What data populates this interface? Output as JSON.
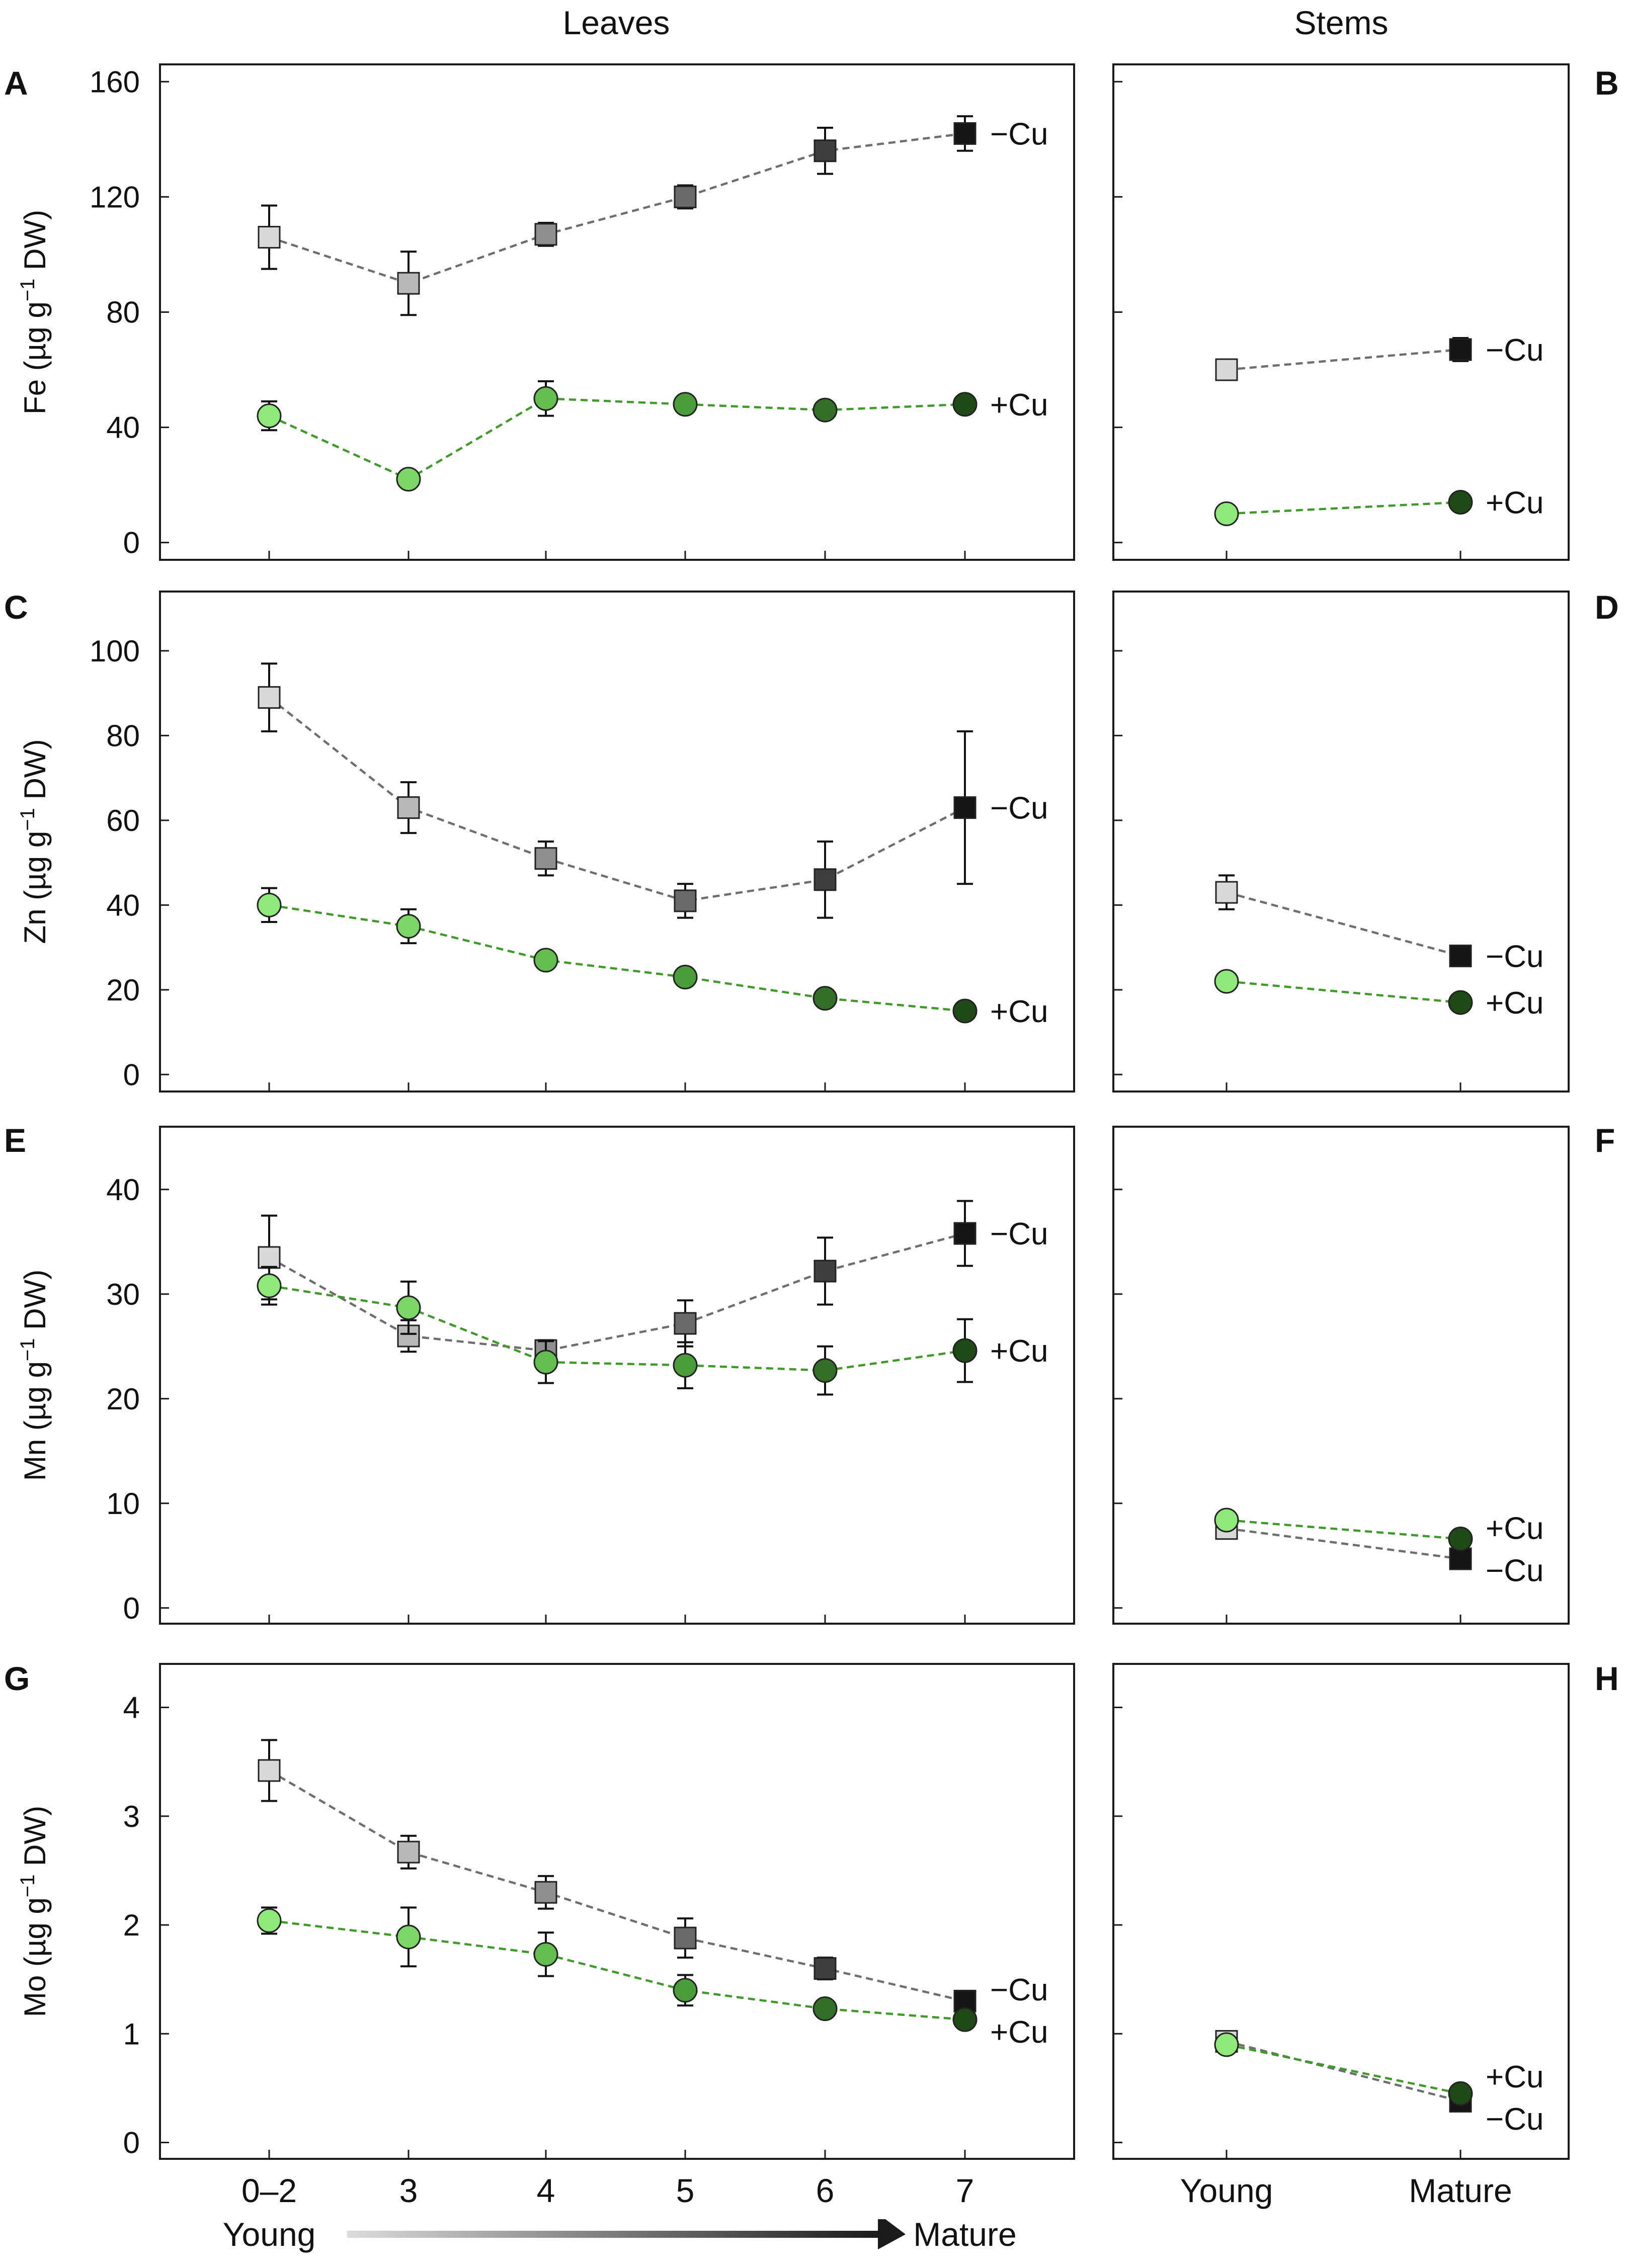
{
  "columns": {
    "leaves": "Leaves",
    "stems": "Stems"
  },
  "panel_letters": [
    "A",
    "B",
    "C",
    "D",
    "E",
    "F",
    "G",
    "H"
  ],
  "axis_words": {
    "young": "Young",
    "mature": "Mature"
  },
  "colors": {
    "minus_cu_line": "#6e6e6e",
    "plus_cu_line": "#3f9a2a",
    "frame": "#1a1a1a",
    "leaf_square_fills": [
      "#d9d9d9",
      "#b8b8b8",
      "#8f8f8f",
      "#6a6a6a",
      "#3e3e3e",
      "#151515"
    ],
    "leaf_circle_fills": [
      "#8ee87a",
      "#7cd668",
      "#63bd4f",
      "#4a9c3a",
      "#336f28",
      "#1f4a17"
    ],
    "stem_square_fills": [
      "#d9d9d9",
      "#151515"
    ],
    "stem_circle_fills": [
      "#8ee87a",
      "#1f4a17"
    ]
  },
  "chart_data": [
    {
      "id": "A",
      "type": "line",
      "tissue": "Leaves",
      "element": "Fe",
      "ylabel": "Fe (µg g⁻¹ DW)",
      "x": [
        "0–2",
        "3",
        "4",
        "5",
        "6",
        "7"
      ],
      "ylim": [
        -6,
        166
      ],
      "yticks": [
        0,
        40,
        80,
        120,
        160
      ],
      "series": [
        {
          "name": "−Cu",
          "marker": "square",
          "values": [
            106,
            90,
            107,
            120,
            136,
            142
          ],
          "errors": [
            11,
            11,
            4,
            4,
            8,
            6
          ]
        },
        {
          "name": "+Cu",
          "marker": "circle",
          "values": [
            44,
            22,
            50,
            48,
            46,
            48
          ],
          "errors": [
            5,
            0,
            6,
            0,
            0,
            0
          ]
        }
      ]
    },
    {
      "id": "B",
      "type": "line",
      "tissue": "Stems",
      "element": "Fe",
      "x": [
        "Young",
        "Mature"
      ],
      "ylim": [
        -6,
        166
      ],
      "series": [
        {
          "name": "−Cu",
          "marker": "square",
          "values": [
            60,
            67
          ],
          "errors": [
            0,
            4
          ]
        },
        {
          "name": "+Cu",
          "marker": "circle",
          "values": [
            10,
            14
          ],
          "errors": [
            0,
            0
          ]
        }
      ]
    },
    {
      "id": "C",
      "type": "line",
      "tissue": "Leaves",
      "element": "Zn",
      "ylabel": "Zn (µg g⁻¹ DW)",
      "x": [
        "0–2",
        "3",
        "4",
        "5",
        "6",
        "7"
      ],
      "ylim": [
        -4,
        114
      ],
      "yticks": [
        0,
        20,
        40,
        60,
        80,
        100
      ],
      "series": [
        {
          "name": "−Cu",
          "marker": "square",
          "values": [
            89,
            63,
            51,
            41,
            46,
            63
          ],
          "errors": [
            8,
            6,
            4,
            4,
            9,
            18
          ]
        },
        {
          "name": "+Cu",
          "marker": "circle",
          "values": [
            40,
            35,
            27,
            23,
            18,
            15
          ],
          "errors": [
            4,
            4,
            2,
            0,
            0,
            0
          ]
        }
      ]
    },
    {
      "id": "D",
      "type": "line",
      "tissue": "Stems",
      "element": "Zn",
      "x": [
        "Young",
        "Mature"
      ],
      "ylim": [
        -4,
        114
      ],
      "series": [
        {
          "name": "−Cu",
          "marker": "square",
          "values": [
            43,
            28
          ],
          "errors": [
            4,
            0
          ]
        },
        {
          "name": "+Cu",
          "marker": "circle",
          "values": [
            22,
            17
          ],
          "errors": [
            0,
            0
          ]
        }
      ]
    },
    {
      "id": "E",
      "type": "line",
      "tissue": "Leaves",
      "element": "Mn",
      "ylabel": "Mn (µg g⁻¹ DW)",
      "x": [
        "0–2",
        "3",
        "4",
        "5",
        "6",
        "7"
      ],
      "ylim": [
        -1.5,
        46
      ],
      "yticks": [
        0,
        10,
        20,
        30,
        40
      ],
      "series": [
        {
          "name": "−Cu",
          "marker": "square",
          "values": [
            33.5,
            26,
            24.6,
            27.2,
            32.2,
            35.8
          ],
          "errors": [
            4,
            1.5,
            1,
            2.2,
            3.2,
            3.1
          ]
        },
        {
          "name": "+Cu",
          "marker": "circle",
          "values": [
            30.8,
            28.7,
            23.5,
            23.2,
            22.7,
            24.6
          ],
          "errors": [
            1.8,
            2.5,
            2,
            2.2,
            2.3,
            3
          ]
        }
      ]
    },
    {
      "id": "F",
      "type": "line",
      "tissue": "Stems",
      "element": "Mn",
      "x": [
        "Young",
        "Mature"
      ],
      "ylim": [
        -1.5,
        46
      ],
      "series": [
        {
          "name": "+Cu",
          "marker": "circle",
          "values": [
            8.4,
            6.6
          ],
          "errors": [
            0,
            0
          ]
        },
        {
          "name": "−Cu",
          "marker": "square",
          "values": [
            7.6,
            4.7
          ],
          "errors": [
            0,
            0
          ]
        }
      ]
    },
    {
      "id": "G",
      "type": "line",
      "tissue": "Leaves",
      "element": "Mo",
      "ylabel": "Mo (µg g⁻¹ DW)",
      "x": [
        "0–2",
        "3",
        "4",
        "5",
        "6",
        "7"
      ],
      "ylim": [
        -0.15,
        4.4
      ],
      "yticks": [
        0,
        1,
        2,
        3,
        4
      ],
      "series": [
        {
          "name": "−Cu",
          "marker": "square",
          "values": [
            3.42,
            2.67,
            2.3,
            1.88,
            1.6,
            1.3
          ],
          "errors": [
            0.28,
            0.15,
            0.15,
            0.18,
            0.1,
            0
          ]
        },
        {
          "name": "+Cu",
          "marker": "circle",
          "values": [
            2.04,
            1.89,
            1.73,
            1.4,
            1.23,
            1.13
          ],
          "errors": [
            0.12,
            0.27,
            0.2,
            0.14,
            0,
            0
          ]
        }
      ]
    },
    {
      "id": "H",
      "type": "line",
      "tissue": "Stems",
      "element": "Mo",
      "x": [
        "Young",
        "Mature"
      ],
      "ylim": [
        -0.15,
        4.4
      ],
      "series": [
        {
          "name": "+Cu",
          "marker": "circle",
          "values": [
            0.9,
            0.45
          ],
          "errors": [
            0,
            0
          ]
        },
        {
          "name": "−Cu",
          "marker": "square",
          "values": [
            0.93,
            0.38
          ],
          "errors": [
            0,
            0
          ]
        }
      ]
    }
  ]
}
